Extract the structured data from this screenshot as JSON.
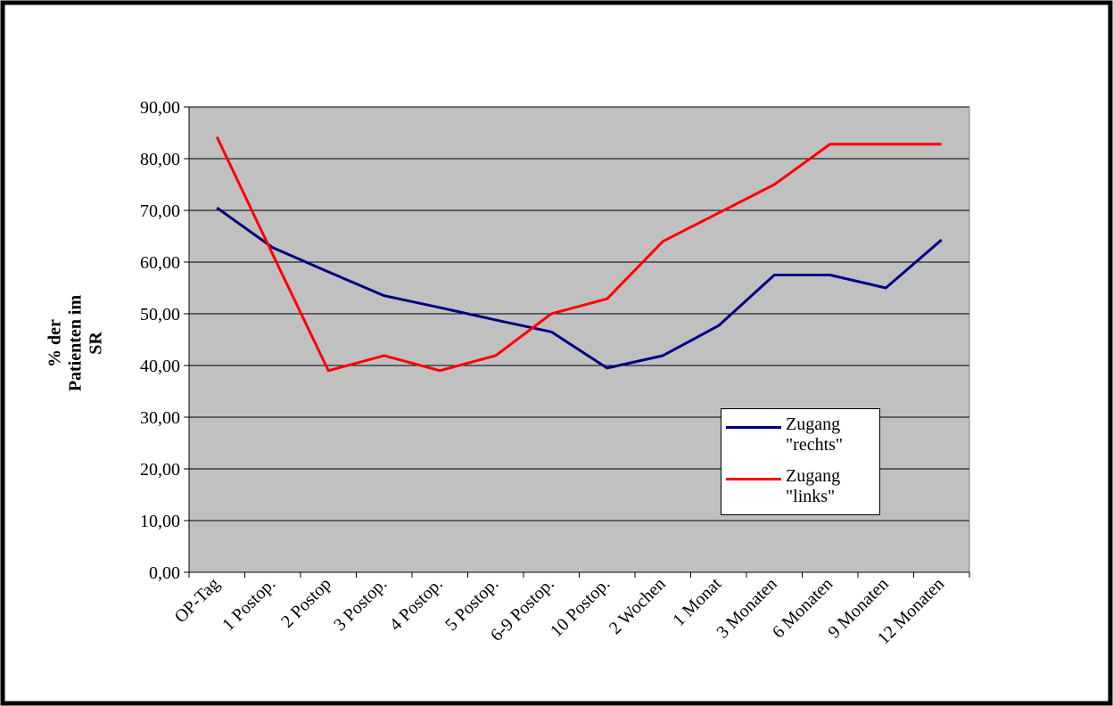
{
  "chart_data": {
    "type": "line",
    "ylabel": [
      "% der",
      "Patienten im",
      "SR"
    ],
    "categories": [
      "OP-Tag",
      "1 Postop.",
      "2 Postop",
      "3 Postop.",
      "4 Postop.",
      "5 Postop.",
      "6-9 Postop.",
      "10 Postop.",
      "2 Wochen",
      "1 Monat",
      "3 Monaten",
      "6 Monaten",
      "9 Monaten",
      "12 Monaten"
    ],
    "series": [
      {
        "name": "Zugang \"rechts\"",
        "color": "#000080",
        "values": [
          70.5,
          62.8,
          58.1,
          53.5,
          51.2,
          48.8,
          46.5,
          39.5,
          41.9,
          47.7,
          57.5,
          57.5,
          55.0,
          64.3
        ]
      },
      {
        "name": "Zugang \"links\"",
        "color": "#ff0000",
        "values": [
          84.2,
          61.5,
          39.0,
          41.9,
          39.0,
          41.9,
          50.0,
          52.9,
          64.0,
          69.5,
          75.0,
          82.8,
          82.8,
          82.8
        ]
      }
    ],
    "ylim": [
      0,
      90
    ],
    "yticks": [
      {
        "value": 0,
        "label": "0,00"
      },
      {
        "value": 10,
        "label": "10,00"
      },
      {
        "value": 20,
        "label": "20,00"
      },
      {
        "value": 30,
        "label": "30,00"
      },
      {
        "value": 40,
        "label": "40,00"
      },
      {
        "value": 50,
        "label": "50,00"
      },
      {
        "value": 60,
        "label": "60,00"
      },
      {
        "value": 70,
        "label": "70,00"
      },
      {
        "value": 80,
        "label": "80,00"
      },
      {
        "value": 90,
        "label": "90,00"
      }
    ],
    "grid": true,
    "plot_background": "#c0c0c0"
  }
}
